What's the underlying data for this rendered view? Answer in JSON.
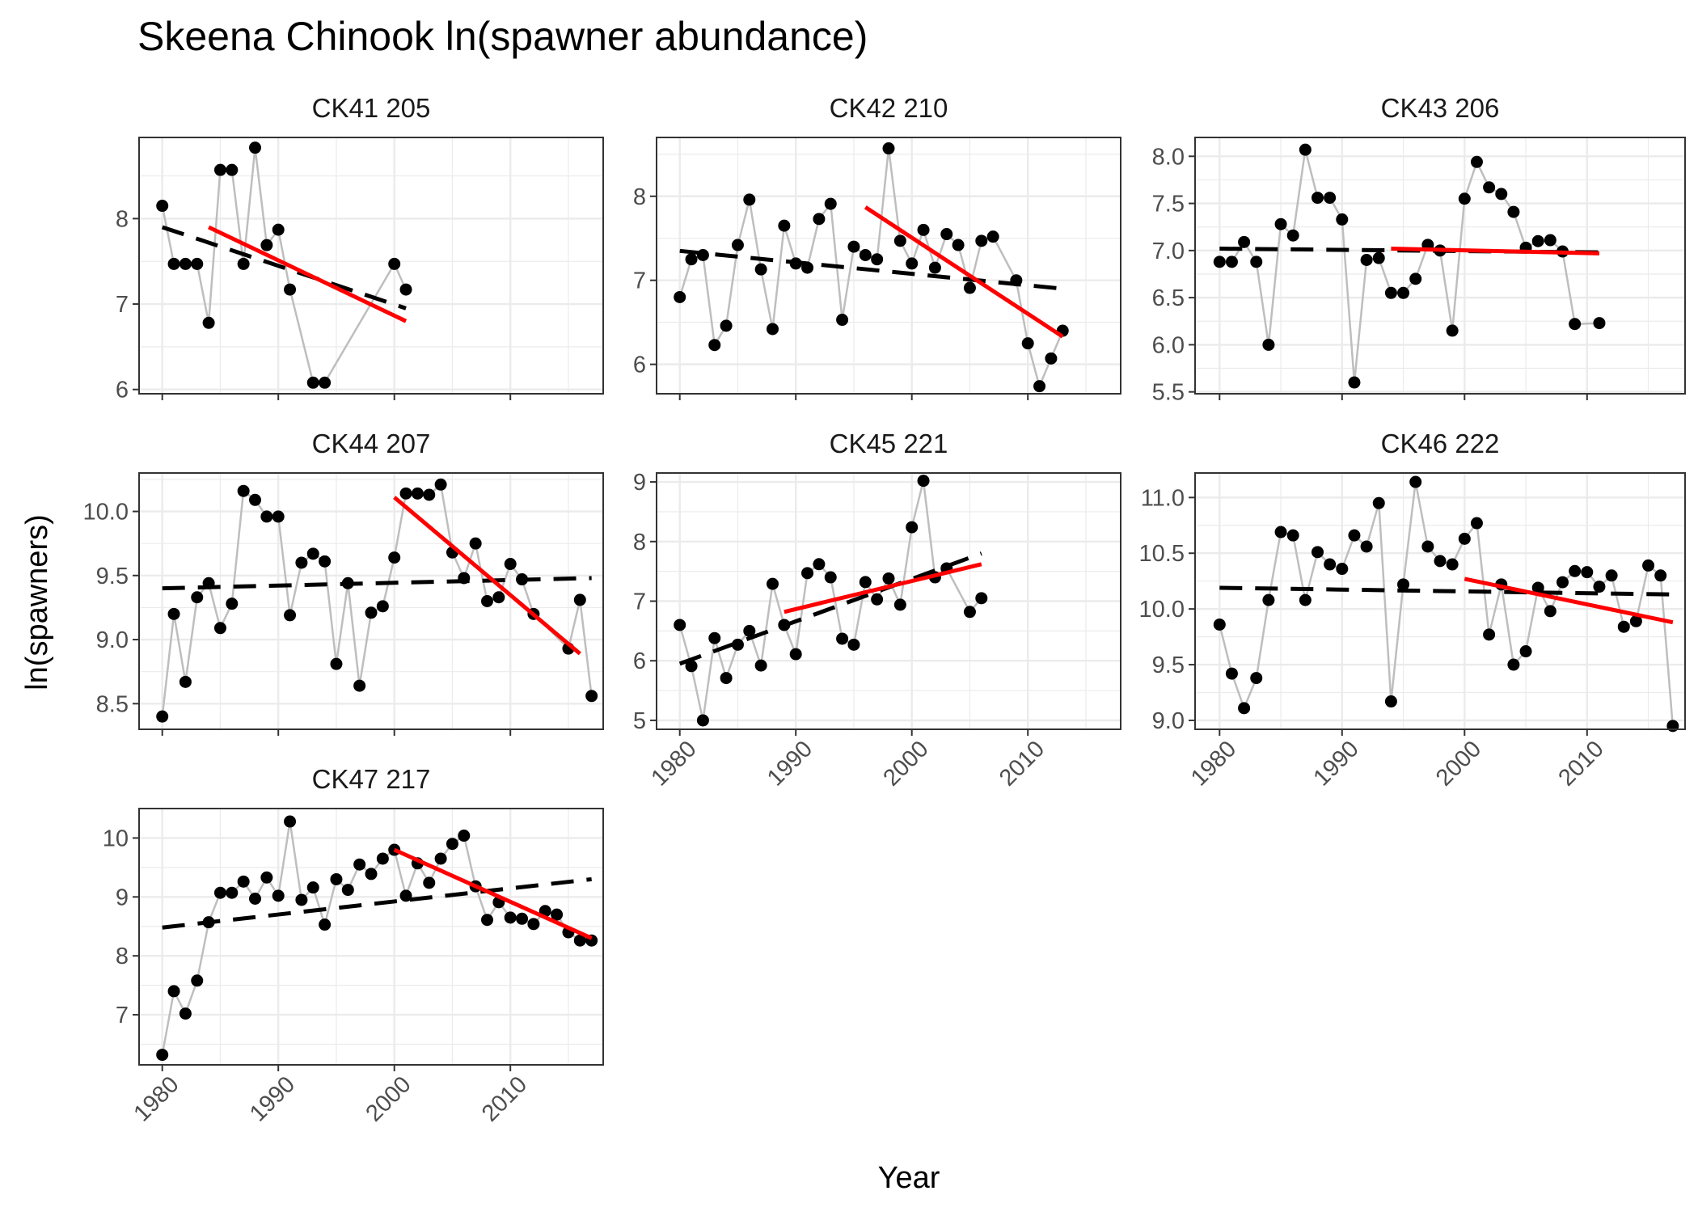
{
  "chart_data": {
    "type": "line",
    "title": "Skeena Chinook ln(spawner abundance)",
    "xlabel": "Year",
    "ylabel": "ln(spawners)",
    "xlim": [
      1978,
      2018
    ],
    "x_ticks": [
      1980,
      1990,
      2000,
      2010
    ],
    "grid": true,
    "legend": "none",
    "colors": {
      "points": "#000000",
      "connector": "#bebebe",
      "long_trend": "#000000",
      "recent_trend": "#ff0000",
      "panel_border": "#333333",
      "grid": "#ebebeb"
    },
    "panels": [
      {
        "label": "CK41 205",
        "ylim": [
          5.95,
          8.95
        ],
        "y_ticks": [
          6,
          7,
          8
        ],
        "y_tick_labels": [
          "6",
          "7",
          "8"
        ],
        "x": [
          1980,
          1981,
          1982,
          1983,
          1984,
          1985,
          1986,
          1987,
          1988,
          1989,
          1990,
          1991,
          1993,
          1994,
          2000,
          2001
        ],
        "y": [
          8.15,
          7.47,
          7.47,
          7.47,
          6.78,
          8.57,
          8.57,
          7.47,
          8.83,
          7.69,
          7.87,
          7.17,
          6.08,
          6.08,
          7.47,
          7.17
        ],
        "long_trend": [
          [
            1980,
            7.9
          ],
          [
            2001,
            6.95
          ]
        ],
        "recent_trend": [
          [
            1984,
            7.9
          ],
          [
            2001,
            6.8
          ]
        ]
      },
      {
        "label": "CK42 210",
        "ylim": [
          5.65,
          8.7
        ],
        "y_ticks": [
          6,
          7,
          8
        ],
        "y_tick_labels": [
          "6",
          "7",
          "8"
        ],
        "x": [
          1980,
          1981,
          1982,
          1983,
          1984,
          1985,
          1986,
          1987,
          1988,
          1989,
          1990,
          1991,
          1992,
          1993,
          1994,
          1995,
          1996,
          1997,
          1998,
          1999,
          2000,
          2001,
          2002,
          2003,
          2004,
          2005,
          2006,
          2007,
          2009,
          2010,
          2011,
          2012,
          2013
        ],
        "y": [
          6.8,
          7.25,
          7.3,
          6.23,
          6.46,
          7.42,
          7.96,
          7.13,
          6.42,
          7.65,
          7.2,
          7.15,
          7.73,
          7.91,
          6.53,
          7.4,
          7.3,
          7.25,
          8.57,
          7.47,
          7.2,
          7.6,
          7.15,
          7.55,
          7.42,
          6.91,
          7.47,
          7.52,
          7.0,
          6.25,
          5.74,
          6.07,
          6.4
        ],
        "long_trend": [
          [
            1980,
            7.35
          ],
          [
            2013,
            6.9
          ]
        ],
        "recent_trend": [
          [
            1996,
            7.87
          ],
          [
            2013,
            6.33
          ]
        ]
      },
      {
        "label": "CK43 206",
        "ylim": [
          5.48,
          8.2
        ],
        "y_ticks": [
          5.5,
          6.0,
          6.5,
          7.0,
          7.5,
          8.0
        ],
        "y_tick_labels": [
          "5.5",
          "6.0",
          "6.5",
          "7.0",
          "7.5",
          "8.0"
        ],
        "x": [
          1980,
          1981,
          1982,
          1983,
          1984,
          1985,
          1986,
          1987,
          1988,
          1989,
          1990,
          1991,
          1992,
          1993,
          1994,
          1995,
          1996,
          1997,
          1998,
          1999,
          2000,
          2001,
          2002,
          2003,
          2004,
          2005,
          2006,
          2007,
          2008,
          2009,
          2011
        ],
        "y": [
          6.88,
          6.88,
          7.09,
          6.88,
          6.0,
          7.28,
          7.16,
          8.07,
          7.56,
          7.56,
          7.33,
          5.6,
          6.9,
          6.92,
          6.55,
          6.55,
          6.7,
          7.06,
          7.0,
          6.15,
          7.55,
          7.94,
          7.67,
          7.6,
          7.41,
          7.03,
          7.1,
          7.11,
          6.99,
          6.22,
          6.23
        ],
        "long_trend": [
          [
            1980,
            7.02
          ],
          [
            2011,
            6.98
          ]
        ],
        "recent_trend": [
          [
            1994,
            7.02
          ],
          [
            2011,
            6.97
          ]
        ]
      },
      {
        "label": "CK44 207",
        "ylim": [
          8.3,
          10.3
        ],
        "y_ticks": [
          8.5,
          9.0,
          9.5,
          10.0
        ],
        "y_tick_labels": [
          "8.5",
          "9.0",
          "9.5",
          "10.0"
        ],
        "x": [
          1980,
          1981,
          1982,
          1983,
          1984,
          1985,
          1986,
          1987,
          1988,
          1989,
          1990,
          1991,
          1992,
          1993,
          1994,
          1995,
          1996,
          1997,
          1998,
          1999,
          2000,
          2001,
          2002,
          2003,
          2004,
          2005,
          2006,
          2007,
          2008,
          2009,
          2010,
          2011,
          2012,
          2015,
          2016,
          2017
        ],
        "y": [
          8.4,
          9.2,
          8.67,
          9.33,
          9.44,
          9.09,
          9.28,
          10.16,
          10.09,
          9.96,
          9.96,
          9.19,
          9.6,
          9.67,
          9.61,
          8.81,
          9.44,
          8.64,
          9.21,
          9.26,
          9.64,
          10.14,
          10.14,
          10.13,
          10.21,
          9.68,
          9.48,
          9.75,
          9.3,
          9.33,
          9.59,
          9.47,
          9.2,
          8.93,
          9.31,
          8.56
        ],
        "long_trend": [
          [
            1980,
            9.4
          ],
          [
            2017,
            9.48
          ]
        ],
        "recent_trend": [
          [
            2000,
            10.11
          ],
          [
            2016,
            8.89
          ]
        ]
      },
      {
        "label": "CK45 221",
        "ylim": [
          4.85,
          9.15
        ],
        "y_ticks": [
          5,
          6,
          7,
          8,
          9
        ],
        "y_tick_labels": [
          "5",
          "6",
          "7",
          "8",
          "9"
        ],
        "x": [
          1980,
          1981,
          1982,
          1983,
          1984,
          1985,
          1986,
          1987,
          1988,
          1989,
          1990,
          1991,
          1992,
          1993,
          1994,
          1995,
          1996,
          1997,
          1998,
          1999,
          2000,
          2001,
          2002,
          2003,
          2005,
          2006
        ],
        "y": [
          6.6,
          5.91,
          5.0,
          6.38,
          5.71,
          6.27,
          6.5,
          5.92,
          7.29,
          6.6,
          6.11,
          7.47,
          7.62,
          7.4,
          6.37,
          6.27,
          7.32,
          7.03,
          7.38,
          6.94,
          8.24,
          9.02,
          7.4,
          7.55,
          6.82,
          7.05
        ],
        "long_trend": [
          [
            1980,
            5.95
          ],
          [
            2006,
            7.8
          ]
        ],
        "recent_trend": [
          [
            1989,
            6.82
          ],
          [
            2006,
            7.62
          ]
        ]
      },
      {
        "label": "CK46 222",
        "ylim": [
          8.92,
          11.22
        ],
        "y_ticks": [
          9.0,
          9.5,
          10.0,
          10.5,
          11.0
        ],
        "y_tick_labels": [
          "9.0",
          "9.5",
          "10.0",
          "10.5",
          "11.0"
        ],
        "x": [
          1980,
          1981,
          1982,
          1983,
          1984,
          1985,
          1986,
          1987,
          1988,
          1989,
          1990,
          1991,
          1992,
          1993,
          1994,
          1995,
          1996,
          1997,
          1998,
          1999,
          2000,
          2001,
          2002,
          2003,
          2004,
          2005,
          2006,
          2007,
          2008,
          2009,
          2010,
          2011,
          2012,
          2013,
          2014,
          2015,
          2016,
          2017
        ],
        "y": [
          9.86,
          9.42,
          9.11,
          9.38,
          10.08,
          10.69,
          10.66,
          10.08,
          10.51,
          10.4,
          10.36,
          10.66,
          10.56,
          10.95,
          9.17,
          10.22,
          11.14,
          10.56,
          10.43,
          10.4,
          10.63,
          10.77,
          9.77,
          10.22,
          9.5,
          9.62,
          10.19,
          9.98,
          10.24,
          10.34,
          10.33,
          10.2,
          10.3,
          9.84,
          9.89,
          10.39,
          10.3,
          8.95
        ],
        "long_trend": [
          [
            1980,
            10.19
          ],
          [
            2017,
            10.13
          ]
        ],
        "recent_trend": [
          [
            2000,
            10.27
          ],
          [
            2017,
            9.88
          ]
        ]
      },
      {
        "label": "CK47 217",
        "ylim": [
          6.15,
          10.5
        ],
        "y_ticks": [
          7,
          8,
          9,
          10
        ],
        "y_tick_labels": [
          "7",
          "8",
          "9",
          "10"
        ],
        "x": [
          1980,
          1981,
          1982,
          1983,
          1984,
          1985,
          1986,
          1987,
          1988,
          1989,
          1990,
          1991,
          1992,
          1993,
          1994,
          1995,
          1996,
          1997,
          1998,
          1999,
          2000,
          2001,
          2002,
          2003,
          2004,
          2005,
          2006,
          2007,
          2008,
          2009,
          2010,
          2011,
          2012,
          2013,
          2014,
          2015,
          2016,
          2017
        ],
        "y": [
          6.32,
          7.4,
          7.02,
          7.58,
          8.57,
          9.07,
          9.07,
          9.26,
          8.97,
          9.33,
          9.02,
          10.28,
          8.95,
          9.16,
          8.53,
          9.3,
          9.12,
          9.55,
          9.39,
          9.65,
          9.8,
          9.02,
          9.57,
          9.24,
          9.65,
          9.9,
          10.04,
          9.18,
          8.61,
          8.91,
          8.65,
          8.63,
          8.54,
          8.76,
          8.7,
          8.4,
          8.26,
          8.26
        ],
        "long_trend": [
          [
            1980,
            8.48
          ],
          [
            2017,
            9.3
          ]
        ],
        "recent_trend": [
          [
            2000,
            9.8
          ],
          [
            2017,
            8.3
          ]
        ]
      }
    ]
  }
}
